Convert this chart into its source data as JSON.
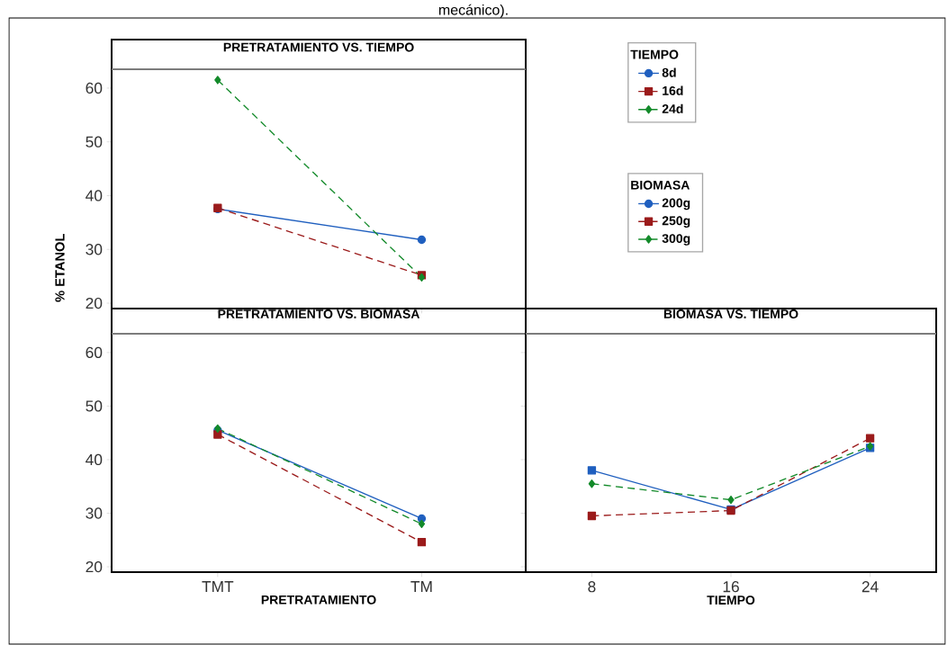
{
  "chart_data": [
    {
      "type": "line",
      "title": "PRETRATAMIENTO VS. TIEMPO",
      "ylabel": "% ETANOL",
      "annotations": [
        "mecánico)."
      ],
      "ylim": [
        19,
        63.5
      ],
      "yticks": [
        20,
        30,
        40,
        50,
        60
      ],
      "tick_labels": "y",
      "legend": "top right",
      "legend_title": "TIEMPO",
      "series": [
        {
          "name": "8d",
          "color": "#1f5fbf",
          "marker": "circle",
          "line_style": "solid",
          "values": [
            37.5,
            31.8
          ]
        },
        {
          "name": "16d",
          "color": "#9b1b1b",
          "marker": "square",
          "line_style": "dashed",
          "values": [
            37.7,
            25.2
          ]
        },
        {
          "name": "24d",
          "color": "#138a2a",
          "marker": "diamond",
          "line_style": "dashed",
          "values": [
            61.5,
            24.8
          ]
        }
      ]
    },
    {
      "type": "line",
      "title": "PRETRATAMIENTO VS. BIOMASA",
      "xlabel": "PRETRATAMIENTO",
      "categories": [
        "TMT",
        "TM"
      ],
      "ylim": [
        19,
        63.5
      ],
      "yticks": [
        20,
        30,
        40,
        50,
        60
      ],
      "legend": "top right",
      "legend_title": "BIOMASA",
      "series": [
        {
          "name": "200g",
          "color": "#1f5fbf",
          "marker": "circle",
          "line_style": "solid",
          "values": [
            45.5,
            29.0
          ]
        },
        {
          "name": "250g",
          "color": "#9b1b1b",
          "marker": "square",
          "line_style": "dashed",
          "values": [
            44.7,
            24.6
          ]
        },
        {
          "name": "300g",
          "color": "#138a2a",
          "marker": "diamond",
          "line_style": "dashed",
          "values": [
            45.8,
            28.0
          ]
        }
      ]
    },
    {
      "type": "line",
      "title": "BIOMASA  VS. TIEMPO",
      "xlabel": "TIEMPO",
      "x": [
        8,
        16,
        24
      ],
      "xlim": [
        4.2,
        27.8
      ],
      "xticks": [
        8,
        16,
        24
      ],
      "ylim": [
        19,
        63.5
      ],
      "yticks": [
        20,
        30,
        40,
        50,
        60
      ],
      "tick_labels": "x",
      "series": [
        {
          "color": "#1f5fbf",
          "marker": "square",
          "line_style": "solid",
          "values": [
            38.0,
            30.7,
            42.2
          ]
        },
        {
          "color": "#9b1b1b",
          "marker": "square",
          "line_style": "dashed",
          "values": [
            29.5,
            30.5,
            44.0
          ]
        },
        {
          "color": "#138a2a",
          "marker": "diamond",
          "line_style": "dashed",
          "values": [
            35.5,
            32.5,
            42.5
          ]
        }
      ]
    }
  ]
}
